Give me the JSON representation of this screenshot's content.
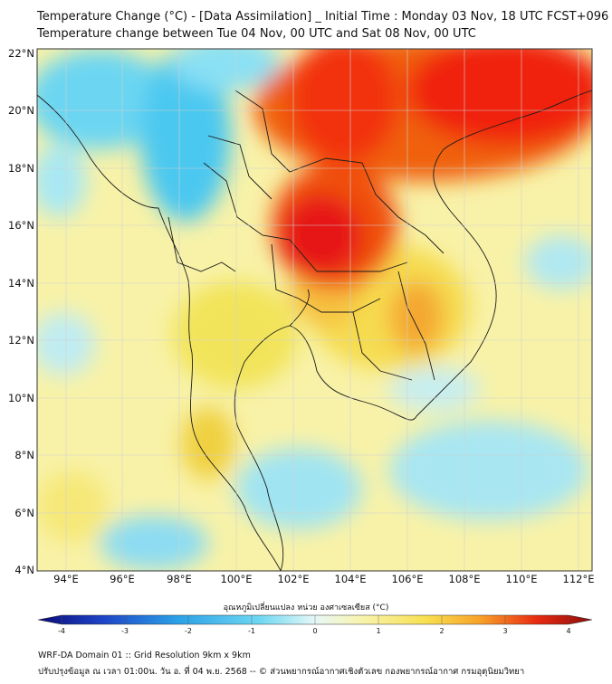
{
  "header": {
    "title_line1": "Temperature Change (°C) - [Data Assimilation] _ Initial Time : Monday 03 Nov, 18 UTC FCST+096",
    "title_line2": "Temperature change between Tue 04 Nov, 00 UTC and Sat 08 Nov, 00 UTC"
  },
  "map": {
    "lat_labels": [
      "22°N",
      "20°N",
      "18°N",
      "16°N",
      "14°N",
      "12°N",
      "10°N",
      "8°N",
      "6°N",
      "4°N"
    ],
    "lon_labels": [
      "94°E",
      "96°E",
      "98°E",
      "100°E",
      "102°E",
      "104°E",
      "106°E",
      "108°E",
      "110°E",
      "112°E"
    ],
    "colors": {
      "ocean": "#c8ecf0",
      "cyan": "#5fd0f0",
      "pale_yellow": "#f8f2a8",
      "yellow": "#f4e860",
      "orange": "#f8b030",
      "red": "#f04018",
      "deep_red": "#e01818"
    }
  },
  "colorbar": {
    "label": "อุณหภูมิเปลี่ยนแปลง หน่วย องศาเซลเซียส (°C)",
    "ticks": [
      "-4",
      "-3",
      "-2",
      "-1",
      "0",
      "1",
      "2",
      "3",
      "4"
    ],
    "gradient": [
      "#0a0a78",
      "#1e46c8",
      "#2aa0e6",
      "#6ed8f2",
      "#e6f8f8",
      "#f8f4b0",
      "#f8e050",
      "#f8a028",
      "#e82a10",
      "#8c0c0c"
    ]
  },
  "footer": {
    "line1": "WRF-DA Domain 01 :: Grid Resolution 9km x 9km",
    "line2": "ปรับปรุงข้อมูล ณ เวลา 01:00น. วัน อ. ที่ 04 พ.ย. 2568 -- © ส่วนพยากรณ์อากาศเชิงตัวเลข กองพยากรณ์อากาศ กรมอุตุนิยมวิทยา"
  }
}
